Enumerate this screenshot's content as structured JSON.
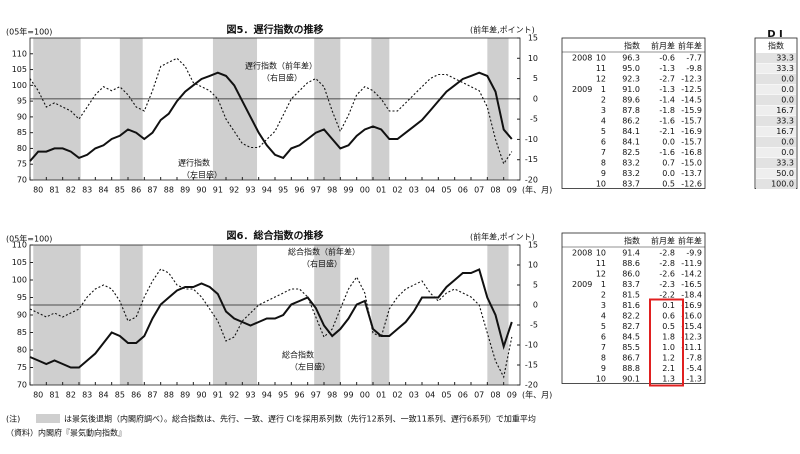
{
  "chart_data": [
    {
      "type": "line",
      "title": "図5．遅行指数の推移",
      "y_label": "(05年=100)",
      "y2_label": "(前年差,ポイント)",
      "x_label": "(年、月)",
      "annotations": [
        "遅行指数（前年差）",
        "（右目盛）",
        "遅行指数",
        "（左目盛）"
      ],
      "xlim": [
        1980,
        2010
      ],
      "xticks": [
        {
          "value": 1980,
          "label": "80"
        },
        {
          "value": 1981,
          "label": "81"
        },
        {
          "value": 1982,
          "label": "82"
        },
        {
          "value": 1983,
          "label": "83"
        },
        {
          "value": 1984,
          "label": "84"
        },
        {
          "value": 1985,
          "label": "85"
        },
        {
          "value": 1986,
          "label": "86"
        },
        {
          "value": 1987,
          "label": "87"
        },
        {
          "value": 1988,
          "label": "88"
        },
        {
          "value": 1989,
          "label": "89"
        },
        {
          "value": 1990,
          "label": "90"
        },
        {
          "value": 1991,
          "label": "91"
        },
        {
          "value": 1992,
          "label": "92"
        },
        {
          "value": 1993,
          "label": "93"
        },
        {
          "value": 1994,
          "label": "94"
        },
        {
          "value": 1995,
          "label": "95"
        },
        {
          "value": 1996,
          "label": "96"
        },
        {
          "value": 1997,
          "label": "97"
        },
        {
          "value": 1998,
          "label": "98"
        },
        {
          "value": 1999,
          "label": "99"
        },
        {
          "value": 2000,
          "label": "00"
        },
        {
          "value": 2001,
          "label": "01"
        },
        {
          "value": 2002,
          "label": "02"
        },
        {
          "value": 2003,
          "label": "03"
        },
        {
          "value": 2004,
          "label": "04"
        },
        {
          "value": 2005,
          "label": "05"
        },
        {
          "value": 2006,
          "label": "06"
        },
        {
          "value": 2007,
          "label": "07"
        },
        {
          "value": 2008,
          "label": "08"
        },
        {
          "value": 2009,
          "label": "09"
        }
      ],
      "ylim": [
        70,
        115
      ],
      "yticks": [
        70,
        75,
        80,
        85,
        90,
        95,
        100,
        105,
        110
      ],
      "y2lim": [
        -20,
        15
      ],
      "y2ticks": [
        -20,
        -15,
        -10,
        -5,
        0,
        5,
        10,
        15
      ],
      "baseline_y2": 0,
      "recessions": [
        [
          1980.2,
          1983.1
        ],
        [
          1985.5,
          1986.9
        ],
        [
          1991.2,
          1993.9
        ],
        [
          1997.4,
          1999.0
        ],
        [
          2000.9,
          2002.0
        ],
        [
          2008.0,
          2009.3
        ]
      ],
      "x": [
        1980,
        1980.5,
        1981,
        1981.5,
        1982,
        1982.5,
        1983,
        1983.5,
        1984,
        1984.5,
        1985,
        1985.5,
        1986,
        1986.5,
        1987,
        1987.5,
        1988,
        1988.5,
        1989,
        1989.5,
        1990,
        1990.5,
        1991,
        1991.5,
        1992,
        1992.5,
        1993,
        1993.5,
        1994,
        1994.5,
        1995,
        1995.5,
        1996,
        1996.5,
        1997,
        1997.5,
        1998,
        1998.5,
        1999,
        1999.5,
        2000,
        2000.5,
        2001,
        2001.5,
        2002,
        2002.5,
        2003,
        2003.5,
        2004,
        2004.5,
        2005,
        2005.5,
        2006,
        2006.5,
        2007,
        2007.5,
        2008,
        2008.5,
        2009,
        2009.5
      ],
      "series": [
        {
          "name": "遅行指数",
          "color": "#111111",
          "dash": false,
          "axis": "y",
          "values": [
            76,
            79,
            79,
            80,
            80,
            79,
            77,
            78,
            80,
            81,
            83,
            84,
            86,
            85,
            83,
            85,
            89,
            91,
            95,
            98,
            100,
            102,
            103,
            104,
            103,
            100,
            95,
            90,
            85,
            81,
            78,
            77,
            80,
            81,
            83,
            85,
            86,
            83,
            80,
            81,
            84,
            86,
            87,
            86,
            83,
            83,
            85,
            87,
            89,
            92,
            95,
            98,
            100,
            102,
            103,
            104,
            103,
            98,
            86,
            83
          ]
        },
        {
          "name": "遅行指数（前年差）",
          "color": "#111111",
          "dash": true,
          "axis": "y2",
          "values": [
            5,
            2,
            -2,
            -1,
            -2,
            -3,
            -5,
            -2,
            1,
            3,
            2,
            3,
            1,
            -2,
            -3,
            2,
            8,
            9,
            10,
            8,
            4,
            3,
            2,
            0,
            -5,
            -8,
            -11,
            -12,
            -12,
            -10,
            -8,
            -4,
            0,
            2,
            4,
            5,
            3,
            -3,
            -8,
            -4,
            1,
            3,
            2,
            0,
            -3,
            -3,
            -1,
            1,
            3,
            5,
            6,
            6,
            5,
            4,
            3,
            2,
            -2,
            -10,
            -16,
            -13
          ]
        }
      ]
    },
    {
      "type": "line",
      "title": "図6．総合指数の推移",
      "y_label": "(05年=100)",
      "y2_label": "(前年差,ポイント)",
      "x_label": "(年、月)",
      "annotations": [
        "総合指数（前年差）",
        "（右目盛）",
        "総合指数",
        "（左目盛）"
      ],
      "xlim": [
        1980,
        2010
      ],
      "xticks": [
        {
          "value": 1980,
          "label": "80"
        },
        {
          "value": 1981,
          "label": "81"
        },
        {
          "value": 1982,
          "label": "82"
        },
        {
          "value": 1983,
          "label": "83"
        },
        {
          "value": 1984,
          "label": "84"
        },
        {
          "value": 1985,
          "label": "85"
        },
        {
          "value": 1986,
          "label": "86"
        },
        {
          "value": 1987,
          "label": "87"
        },
        {
          "value": 1988,
          "label": "88"
        },
        {
          "value": 1989,
          "label": "89"
        },
        {
          "value": 1990,
          "label": "90"
        },
        {
          "value": 1991,
          "label": "91"
        },
        {
          "value": 1992,
          "label": "92"
        },
        {
          "value": 1993,
          "label": "93"
        },
        {
          "value": 1994,
          "label": "94"
        },
        {
          "value": 1995,
          "label": "95"
        },
        {
          "value": 1996,
          "label": "96"
        },
        {
          "value": 1997,
          "label": "97"
        },
        {
          "value": 1998,
          "label": "98"
        },
        {
          "value": 1999,
          "label": "99"
        },
        {
          "value": 2000,
          "label": "00"
        },
        {
          "value": 2001,
          "label": "01"
        },
        {
          "value": 2002,
          "label": "02"
        },
        {
          "value": 2003,
          "label": "03"
        },
        {
          "value": 2004,
          "label": "04"
        },
        {
          "value": 2005,
          "label": "05"
        },
        {
          "value": 2006,
          "label": "06"
        },
        {
          "value": 2007,
          "label": "07"
        },
        {
          "value": 2008,
          "label": "08"
        },
        {
          "value": 2009,
          "label": "09"
        }
      ],
      "ylim": [
        70,
        110
      ],
      "yticks": [
        70,
        75,
        80,
        85,
        90,
        95,
        100,
        105,
        110
      ],
      "y2lim": [
        -20,
        15
      ],
      "y2ticks": [
        -20,
        -15,
        -10,
        -5,
        0,
        5,
        10,
        15
      ],
      "baseline_y2": 0,
      "recessions": [
        [
          1980.2,
          1983.1
        ],
        [
          1985.5,
          1986.9
        ],
        [
          1991.2,
          1993.9
        ],
        [
          1997.4,
          1999.0
        ],
        [
          2000.9,
          2002.0
        ],
        [
          2008.0,
          2009.3
        ]
      ],
      "x": [
        1980,
        1980.5,
        1981,
        1981.5,
        1982,
        1982.5,
        1983,
        1983.5,
        1984,
        1984.5,
        1985,
        1985.5,
        1986,
        1986.5,
        1987,
        1987.5,
        1988,
        1988.5,
        1989,
        1989.5,
        1990,
        1990.5,
        1991,
        1991.5,
        1992,
        1992.5,
        1993,
        1993.5,
        1994,
        1994.5,
        1995,
        1995.5,
        1996,
        1996.5,
        1997,
        1997.5,
        1998,
        1998.5,
        1999,
        1999.5,
        2000,
        2000.5,
        2001,
        2001.5,
        2002,
        2002.5,
        2003,
        2003.5,
        2004,
        2004.5,
        2005,
        2005.5,
        2006,
        2006.5,
        2007,
        2007.5,
        2008,
        2008.5,
        2009,
        2009.5
      ],
      "series": [
        {
          "name": "総合指数",
          "color": "#111111",
          "dash": false,
          "axis": "y",
          "values": [
            78,
            77,
            76,
            77,
            76,
            75,
            75,
            77,
            79,
            82,
            85,
            84,
            82,
            82,
            84,
            89,
            93,
            95,
            97,
            98,
            98,
            99,
            98,
            96,
            91,
            89,
            88,
            87,
            88,
            89,
            89,
            90,
            93,
            94,
            95,
            92,
            87,
            84,
            86,
            89,
            93,
            94,
            86,
            84,
            84,
            86,
            88,
            91,
            95,
            95,
            95,
            98,
            100,
            102,
            102,
            103,
            95,
            90,
            81,
            88
          ]
        },
        {
          "name": "総合指数（前年差）",
          "color": "#111111",
          "dash": true,
          "axis": "y2",
          "values": [
            -1,
            -2,
            -3,
            -2,
            -3,
            -2,
            -1,
            2,
            4,
            5,
            4,
            1,
            -4,
            -3,
            2,
            6,
            9,
            8,
            5,
            4,
            4,
            2,
            -1,
            -4,
            -9,
            -8,
            -4,
            -2,
            0,
            1,
            2,
            3,
            4,
            4,
            2,
            -3,
            -8,
            -6,
            -1,
            4,
            7,
            3,
            -7,
            -8,
            -1,
            2,
            4,
            5,
            6,
            3,
            1,
            3,
            4,
            3,
            2,
            0,
            -7,
            -14,
            -18,
            -8
          ]
        }
      ]
    }
  ],
  "tables": [
    {
      "header": [
        "指数",
        "前月差",
        "前年差"
      ],
      "rows": [
        [
          "2008",
          "10",
          "96.3",
          "-0.6",
          "-7.7"
        ],
        [
          null,
          "11",
          "95.0",
          "-1.3",
          "-9.8"
        ],
        [
          null,
          "12",
          "92.3",
          "-2.7",
          "-12.3"
        ],
        [
          "2009",
          "1",
          "91.0",
          "-1.3",
          "-12.5"
        ],
        [
          null,
          "2",
          "89.6",
          "-1.4",
          "-14.5"
        ],
        [
          null,
          "3",
          "87.8",
          "-1.8",
          "-15.9"
        ],
        [
          null,
          "4",
          "86.2",
          "-1.6",
          "-15.7"
        ],
        [
          null,
          "5",
          "84.1",
          "-2.1",
          "-16.9"
        ],
        [
          null,
          "6",
          "84.1",
          "0.0",
          "-15.7"
        ],
        [
          null,
          "7",
          "82.5",
          "-1.6",
          "-16.8"
        ],
        [
          null,
          "8",
          "83.2",
          "0.7",
          "-15.0"
        ],
        [
          null,
          "9",
          "83.2",
          "0.0",
          "-13.7"
        ],
        [
          null,
          "10",
          "83.7",
          "0.5",
          "-12.6"
        ]
      ]
    },
    {
      "header": [
        "指数",
        "前月差",
        "前年差"
      ],
      "rows": [
        [
          "2008",
          "10",
          "91.4",
          "-2.8",
          "-9.9"
        ],
        [
          null,
          "11",
          "88.6",
          "-2.8",
          "-11.9"
        ],
        [
          null,
          "12",
          "86.0",
          "-2.6",
          "-14.2"
        ],
        [
          "2009",
          "1",
          "83.7",
          "-2.3",
          "-16.5"
        ],
        [
          null,
          "2",
          "81.5",
          "-2.2",
          "-18.4"
        ],
        [
          null,
          "3",
          "81.6",
          "0.1",
          "-16.9"
        ],
        [
          null,
          "4",
          "82.2",
          "0.6",
          "-16.0"
        ],
        [
          null,
          "5",
          "82.7",
          "0.5",
          "-15.4"
        ],
        [
          null,
          "6",
          "84.5",
          "1.8",
          "-12.3"
        ],
        [
          null,
          "7",
          "85.5",
          "1.0",
          "-11.1"
        ],
        [
          null,
          "8",
          "86.7",
          "1.2",
          "-7.8"
        ],
        [
          null,
          "9",
          "88.8",
          "2.1",
          "-5.4"
        ],
        [
          null,
          "10",
          "90.1",
          "1.3",
          "-1.3"
        ]
      ]
    }
  ],
  "di_table": {
    "title": "D I",
    "header": "指数",
    "values": [
      "33.3",
      "33.3",
      "0.0",
      "0.0",
      "0.0",
      "16.7",
      "33.3",
      "16.7",
      "0.0",
      "0.0",
      "33.3",
      "50.0",
      "100.0"
    ]
  },
  "notes": {
    "label": "(注)",
    "text": "は景気後退期（内閣府調べ）。総合指数は、先行、一致、遅行 CIを採用系列数（先行12系列、一致11系列、遅行6系列）で加重平均",
    "source": "（資料）内閣府『景気動向指数』"
  }
}
